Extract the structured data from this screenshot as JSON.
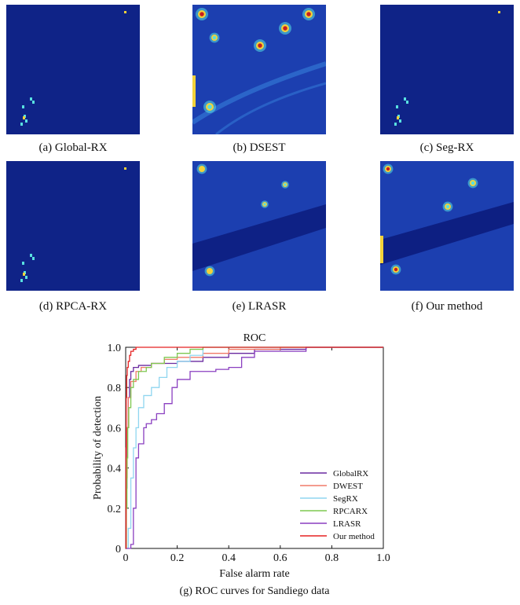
{
  "panels": [
    {
      "id": "a",
      "caption": "(a) Global-RX",
      "style": "sparse"
    },
    {
      "id": "b",
      "caption": "(b) DSEST",
      "style": "dsest"
    },
    {
      "id": "c",
      "caption": "(c) Seg-RX",
      "style": "sparse"
    },
    {
      "id": "d",
      "caption": "(d) RPCA-RX",
      "style": "sparse"
    },
    {
      "id": "e",
      "caption": "(e) LRASR",
      "style": "lrasr"
    },
    {
      "id": "f",
      "caption": "(f) Our method",
      "style": "ours"
    }
  ],
  "colors": {
    "map_dark": "#0b1a7a",
    "map_mid": "#1c3fb0",
    "map_light": "#2f6fd0",
    "hot_red": "#c81e1e",
    "hot_yellow": "#f2d23a",
    "hot_cyan": "#58e0e0"
  },
  "chart_data": {
    "type": "line",
    "title": "ROC",
    "xlabel": "False alarm rate",
    "ylabel": "Probability  of  detection",
    "xlim": [
      0,
      1
    ],
    "ylim": [
      0,
      1
    ],
    "xticks": [
      "0",
      "0.2",
      "0.4",
      "0.6",
      "0.8",
      "1.0"
    ],
    "yticks": [
      "0",
      "0.2",
      "0.4",
      "0.6",
      "0.8",
      "1.0"
    ],
    "legend_position": "bottom-right",
    "caption": "(g) ROC curves for Sandiego data",
    "series": [
      {
        "name": "GlobalRX",
        "color": "#6a2aa0",
        "x": [
          0,
          0.002,
          0.005,
          0.01,
          0.015,
          0.02,
          0.03,
          0.05,
          0.1,
          0.2,
          0.3,
          0.4,
          0.5,
          0.7,
          0.9,
          1.0
        ],
        "y": [
          0,
          0.3,
          0.6,
          0.75,
          0.84,
          0.88,
          0.9,
          0.91,
          0.92,
          0.93,
          0.95,
          0.97,
          0.99,
          1.0,
          1.0,
          1.0
        ]
      },
      {
        "name": "DWEST",
        "color": "#f07a68",
        "x": [
          0,
          0.003,
          0.006,
          0.01,
          0.02,
          0.04,
          0.06,
          0.1,
          0.15,
          0.2,
          0.3,
          0.4,
          0.6,
          0.8,
          1.0
        ],
        "y": [
          0,
          0.35,
          0.6,
          0.75,
          0.83,
          0.88,
          0.9,
          0.92,
          0.94,
          0.95,
          0.97,
          0.99,
          1.0,
          1.0,
          1.0
        ]
      },
      {
        "name": "SegRX",
        "color": "#8fd6f0",
        "x": [
          0,
          0.01,
          0.02,
          0.03,
          0.04,
          0.05,
          0.07,
          0.1,
          0.13,
          0.16,
          0.2,
          0.25,
          0.3,
          0.4,
          1.0
        ],
        "y": [
          0,
          0.1,
          0.35,
          0.5,
          0.6,
          0.7,
          0.76,
          0.8,
          0.85,
          0.9,
          0.93,
          0.96,
          1.0,
          1.0,
          1.0
        ]
      },
      {
        "name": "RPCARX",
        "color": "#7ec850",
        "x": [
          0,
          0.002,
          0.005,
          0.008,
          0.012,
          0.02,
          0.03,
          0.05,
          0.08,
          0.1,
          0.15,
          0.2,
          0.25,
          0.3,
          1.0
        ],
        "y": [
          0,
          0.2,
          0.45,
          0.6,
          0.7,
          0.8,
          0.84,
          0.88,
          0.9,
          0.92,
          0.95,
          0.97,
          0.99,
          1.0,
          1.0
        ]
      },
      {
        "name": "LRASR",
        "color": "#8a3fc0",
        "x": [
          0,
          0.02,
          0.03,
          0.04,
          0.05,
          0.07,
          0.08,
          0.1,
          0.12,
          0.15,
          0.18,
          0.2,
          0.25,
          0.3,
          0.35,
          0.4,
          0.45,
          0.5,
          0.7,
          1.0
        ],
        "y": [
          0,
          0.02,
          0.2,
          0.45,
          0.52,
          0.6,
          0.62,
          0.64,
          0.67,
          0.72,
          0.8,
          0.84,
          0.88,
          0.88,
          0.89,
          0.9,
          0.95,
          0.98,
          1.0,
          1.0
        ]
      },
      {
        "name": "Our method",
        "color": "#e52222",
        "x": [
          0,
          0.001,
          0.002,
          0.004,
          0.006,
          0.01,
          0.015,
          0.02,
          0.03,
          0.04,
          1.0
        ],
        "y": [
          0,
          0.5,
          0.75,
          0.86,
          0.9,
          0.93,
          0.96,
          0.98,
          0.99,
          1.0,
          1.0
        ]
      }
    ]
  }
}
